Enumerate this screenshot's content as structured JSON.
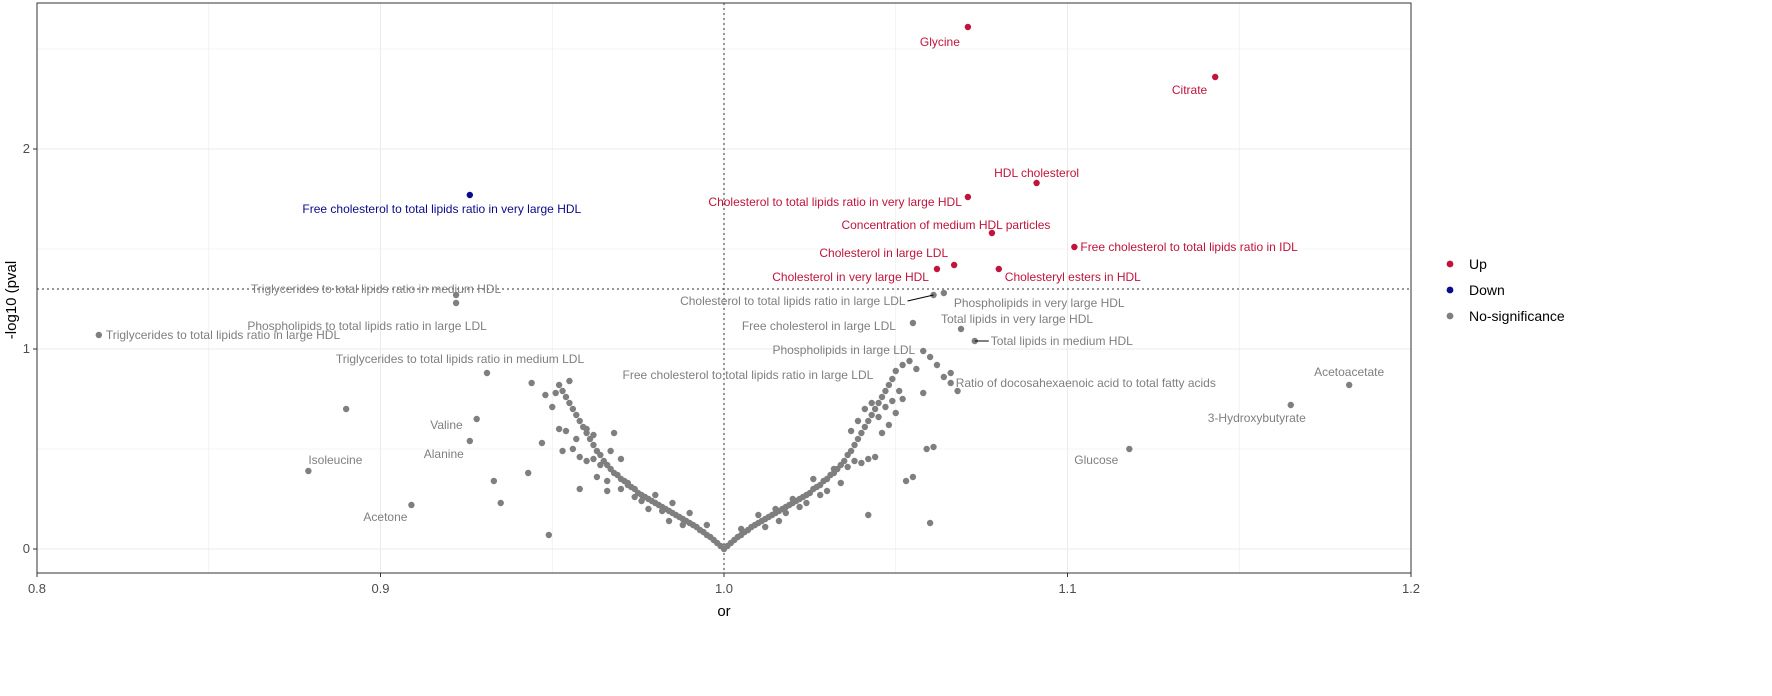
{
  "chart_data": {
    "type": "scatter",
    "title": "",
    "xlabel": "or",
    "ylabel": "-log10 (pval",
    "xlim": [
      0.8,
      1.2
    ],
    "ylim": [
      -0.12,
      2.73
    ],
    "x_ticks": [
      0.8,
      0.9,
      1.0,
      1.1,
      1.2
    ],
    "x_tick_labels": [
      "0.8",
      "0.9",
      "1.0",
      "1.1",
      "1.2"
    ],
    "y_ticks": [
      0,
      1,
      2
    ],
    "y_tick_labels": [
      "0",
      "1",
      "2"
    ],
    "grid": true,
    "threshold_y": 1.3,
    "threshold_x": 1.0,
    "legend": {
      "position": "right",
      "entries": [
        {
          "label": "Up",
          "color": "#c0143c"
        },
        {
          "label": "Down",
          "color": "#0a0a8c"
        },
        {
          "label": "No-significance",
          "color": "#7f7f7f"
        }
      ]
    },
    "colors": {
      "up": "#c0143c",
      "down": "#0a0a8c",
      "ns": "#7f7f7f"
    },
    "labeled_points": [
      {
        "x": 1.071,
        "y": 2.61,
        "label": "Glycine",
        "group": "up"
      },
      {
        "x": 1.143,
        "y": 2.36,
        "label": "Citrate",
        "group": "up"
      },
      {
        "x": 1.091,
        "y": 1.83,
        "label": "HDL cholesterol",
        "group": "up"
      },
      {
        "x": 1.071,
        "y": 1.76,
        "label": "Cholesterol to total lipids ratio in very large HDL",
        "group": "up"
      },
      {
        "x": 0.926,
        "y": 1.77,
        "label": "Free cholesterol to total lipids ratio in very large HDL",
        "group": "down"
      },
      {
        "x": 1.078,
        "y": 1.58,
        "label": "Concentration of medium HDL particles",
        "group": "up"
      },
      {
        "x": 1.102,
        "y": 1.51,
        "label": "Free cholesterol to total lipids ratio in IDL",
        "group": "up"
      },
      {
        "x": 1.067,
        "y": 1.42,
        "label": "Cholesterol in large LDL",
        "group": "up"
      },
      {
        "x": 1.062,
        "y": 1.4,
        "label": "Cholesterol in very large HDL",
        "group": "up"
      },
      {
        "x": 1.08,
        "y": 1.4,
        "label": "Cholesteryl esters in HDL",
        "group": "up"
      },
      {
        "x": 0.922,
        "y": 1.27,
        "label": "Triglycerides to total lipids ratio in medium HDL",
        "group": "ns"
      },
      {
        "x": 1.061,
        "y": 1.27,
        "label": "Cholesterol to total lipids ratio in large LDL",
        "group": "ns"
      },
      {
        "x": 1.064,
        "y": 1.28,
        "label": "Phospholipids in very large HDL",
        "group": "ns"
      },
      {
        "x": 0.922,
        "y": 1.23,
        "label": "Phospholipids to total lipids ratio in large LDL",
        "group": "ns"
      },
      {
        "x": 1.055,
        "y": 1.13,
        "label": "Free cholesterol in large LDL",
        "group": "ns"
      },
      {
        "x": 1.069,
        "y": 1.1,
        "label": "Total lipids in very large HDL",
        "group": "ns"
      },
      {
        "x": 0.818,
        "y": 1.07,
        "label": "Triglycerides to total lipids ratio in large HDL",
        "group": "ns"
      },
      {
        "x": 1.073,
        "y": 1.04,
        "label": "Total lipids in medium HDL",
        "group": "ns"
      },
      {
        "x": 1.058,
        "y": 0.99,
        "label": "Phospholipids in large LDL",
        "group": "ns"
      },
      {
        "x": 0.931,
        "y": 0.88,
        "label": "Triglycerides to total lipids ratio in medium LDL",
        "group": "ns"
      },
      {
        "x": 1.049,
        "y": 0.85,
        "label": "Free cholesterol to total lipids ratio in large LDL",
        "group": "ns"
      },
      {
        "x": 1.066,
        "y": 0.88,
        "label": "Ratio of docosahexaenoic acid to total fatty acids",
        "group": "ns"
      },
      {
        "x": 1.182,
        "y": 0.82,
        "label": "Acetoacetate",
        "group": "ns"
      },
      {
        "x": 1.165,
        "y": 0.72,
        "label": "3-Hydroxybutyrate",
        "group": "ns"
      },
      {
        "x": 0.928,
        "y": 0.65,
        "label": "Valine",
        "group": "ns"
      },
      {
        "x": 0.926,
        "y": 0.54,
        "label": "Alanine",
        "group": "ns"
      },
      {
        "x": 1.118,
        "y": 0.5,
        "label": "Glucose",
        "group": "ns"
      },
      {
        "x": 0.879,
        "y": 0.39,
        "label": "Isoleucine",
        "group": "ns"
      },
      {
        "x": 0.909,
        "y": 0.22,
        "label": "Acetone",
        "group": "ns"
      }
    ],
    "unlabeled_points": [
      [
        1.0,
        0.0
      ],
      [
        1.001,
        0.015
      ],
      [
        0.999,
        0.015
      ],
      [
        1.002,
        0.03
      ],
      [
        0.998,
        0.03
      ],
      [
        1.003,
        0.045
      ],
      [
        0.997,
        0.045
      ],
      [
        1.004,
        0.06
      ],
      [
        0.996,
        0.06
      ],
      [
        1.005,
        0.07
      ],
      [
        0.995,
        0.07
      ],
      [
        1.006,
        0.085
      ],
      [
        0.994,
        0.085
      ],
      [
        1.007,
        0.095
      ],
      [
        0.993,
        0.095
      ],
      [
        1.008,
        0.11
      ],
      [
        0.992,
        0.11
      ],
      [
        1.009,
        0.12
      ],
      [
        0.991,
        0.12
      ],
      [
        1.01,
        0.13
      ],
      [
        0.99,
        0.13
      ],
      [
        1.011,
        0.14
      ],
      [
        0.989,
        0.14
      ],
      [
        1.012,
        0.15
      ],
      [
        0.988,
        0.15
      ],
      [
        1.013,
        0.16
      ],
      [
        0.987,
        0.16
      ],
      [
        1.014,
        0.17
      ],
      [
        0.986,
        0.17
      ],
      [
        1.015,
        0.18
      ],
      [
        0.985,
        0.18
      ],
      [
        1.016,
        0.19
      ],
      [
        0.984,
        0.19
      ],
      [
        1.017,
        0.2
      ],
      [
        0.983,
        0.2
      ],
      [
        1.018,
        0.21
      ],
      [
        0.982,
        0.21
      ],
      [
        1.019,
        0.22
      ],
      [
        0.981,
        0.22
      ],
      [
        1.02,
        0.23
      ],
      [
        0.98,
        0.23
      ],
      [
        1.021,
        0.24
      ],
      [
        0.979,
        0.24
      ],
      [
        1.022,
        0.25
      ],
      [
        0.978,
        0.25
      ],
      [
        1.023,
        0.26
      ],
      [
        0.977,
        0.26
      ],
      [
        1.024,
        0.27
      ],
      [
        0.976,
        0.27
      ],
      [
        1.025,
        0.28
      ],
      [
        0.975,
        0.28
      ],
      [
        1.026,
        0.3
      ],
      [
        0.974,
        0.3
      ],
      [
        1.027,
        0.31
      ],
      [
        0.973,
        0.31
      ],
      [
        1.028,
        0.32
      ],
      [
        0.972,
        0.32
      ],
      [
        1.029,
        0.34
      ],
      [
        0.971,
        0.34
      ],
      [
        1.03,
        0.35
      ],
      [
        0.97,
        0.35
      ],
      [
        1.031,
        0.37
      ],
      [
        0.969,
        0.37
      ],
      [
        1.032,
        0.38
      ],
      [
        0.968,
        0.38
      ],
      [
        1.033,
        0.4
      ],
      [
        0.967,
        0.4
      ],
      [
        1.034,
        0.42
      ],
      [
        0.966,
        0.42
      ],
      [
        1.035,
        0.44
      ],
      [
        0.965,
        0.44
      ],
      [
        1.036,
        0.47
      ],
      [
        0.964,
        0.47
      ],
      [
        1.037,
        0.49
      ],
      [
        0.963,
        0.49
      ],
      [
        1.038,
        0.52
      ],
      [
        0.962,
        0.52
      ],
      [
        1.039,
        0.55
      ],
      [
        0.961,
        0.55
      ],
      [
        1.04,
        0.58
      ],
      [
        0.96,
        0.58
      ],
      [
        1.041,
        0.61
      ],
      [
        0.959,
        0.61
      ],
      [
        1.042,
        0.64
      ],
      [
        0.958,
        0.64
      ],
      [
        1.043,
        0.67
      ],
      [
        0.957,
        0.67
      ],
      [
        1.044,
        0.7
      ],
      [
        0.956,
        0.7
      ],
      [
        1.045,
        0.73
      ],
      [
        0.955,
        0.73
      ],
      [
        1.046,
        0.76
      ],
      [
        0.954,
        0.76
      ],
      [
        1.047,
        0.79
      ],
      [
        0.953,
        0.79
      ],
      [
        1.048,
        0.82
      ],
      [
        0.952,
        0.82
      ],
      [
        1.012,
        0.11
      ],
      [
        0.988,
        0.12
      ],
      [
        1.018,
        0.18
      ],
      [
        0.982,
        0.19
      ],
      [
        1.024,
        0.23
      ],
      [
        0.976,
        0.24
      ],
      [
        1.03,
        0.29
      ],
      [
        0.97,
        0.3
      ],
      [
        1.034,
        0.33
      ],
      [
        0.966,
        0.34
      ],
      [
        1.036,
        0.41
      ],
      [
        0.964,
        0.42
      ],
      [
        1.038,
        0.44
      ],
      [
        0.962,
        0.45
      ],
      [
        1.04,
        0.43
      ],
      [
        0.96,
        0.44
      ],
      [
        1.042,
        0.45
      ],
      [
        0.958,
        0.46
      ],
      [
        1.044,
        0.46
      ],
      [
        0.956,
        0.5
      ],
      [
        1.046,
        0.58
      ],
      [
        0.954,
        0.59
      ],
      [
        1.048,
        0.62
      ],
      [
        0.952,
        0.6
      ],
      [
        1.05,
        0.68
      ],
      [
        0.95,
        0.71
      ],
      [
        1.052,
        0.75
      ],
      [
        0.948,
        0.77
      ],
      [
        1.05,
        0.89
      ],
      [
        1.052,
        0.92
      ],
      [
        1.054,
        0.94
      ],
      [
        1.056,
        0.9
      ],
      [
        1.06,
        0.96
      ],
      [
        1.062,
        0.92
      ],
      [
        1.064,
        0.86
      ],
      [
        1.066,
        0.83
      ],
      [
        1.068,
        0.79
      ],
      [
        1.058,
        0.78
      ],
      [
        1.055,
        0.36
      ],
      [
        1.053,
        0.34
      ],
      [
        1.059,
        0.5
      ],
      [
        1.061,
        0.51
      ],
      [
        1.06,
        0.13
      ],
      [
        1.042,
        0.17
      ],
      [
        0.949,
        0.07
      ],
      [
        0.935,
        0.23
      ],
      [
        0.933,
        0.34
      ],
      [
        0.943,
        0.38
      ],
      [
        0.89,
        0.7
      ],
      [
        0.944,
        0.83
      ],
      [
        0.951,
        0.78
      ],
      [
        0.955,
        0.84
      ],
      [
        0.96,
        0.6
      ],
      [
        0.962,
        0.57
      ],
      [
        0.968,
        0.58
      ],
      [
        0.97,
        0.45
      ],
      [
        0.972,
        0.33
      ],
      [
        0.98,
        0.27
      ],
      [
        0.985,
        0.23
      ],
      [
        0.99,
        0.18
      ],
      [
        0.995,
        0.12
      ],
      [
        1.005,
        0.1
      ],
      [
        1.01,
        0.17
      ],
      [
        1.015,
        0.2
      ],
      [
        1.02,
        0.25
      ],
      [
        1.026,
        0.35
      ],
      [
        1.032,
        0.4
      ],
      [
        1.028,
        0.27
      ],
      [
        1.022,
        0.21
      ],
      [
        1.016,
        0.14
      ],
      [
        0.984,
        0.14
      ],
      [
        0.978,
        0.2
      ],
      [
        0.974,
        0.26
      ],
      [
        0.966,
        0.29
      ],
      [
        0.958,
        0.3
      ],
      [
        0.963,
        0.36
      ],
      [
        0.967,
        0.49
      ],
      [
        0.957,
        0.55
      ],
      [
        0.953,
        0.49
      ],
      [
        0.947,
        0.53
      ],
      [
        1.037,
        0.59
      ],
      [
        1.039,
        0.64
      ],
      [
        1.041,
        0.7
      ],
      [
        1.043,
        0.73
      ],
      [
        1.045,
        0.66
      ],
      [
        1.047,
        0.71
      ],
      [
        1.049,
        0.74
      ],
      [
        1.051,
        0.79
      ]
    ]
  }
}
